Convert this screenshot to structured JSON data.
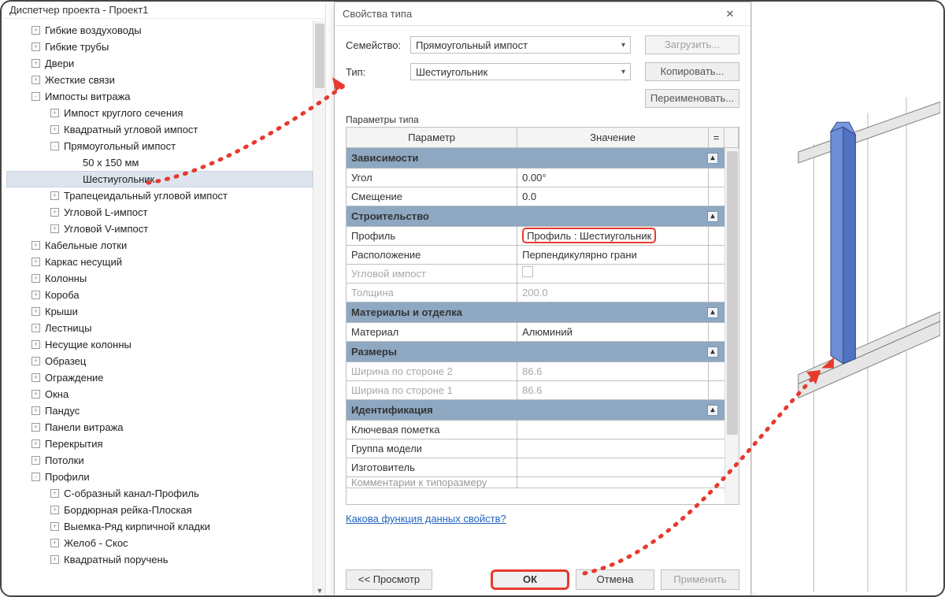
{
  "colors": {
    "panel_bg": "#ffffff",
    "border": "#c0c0c0",
    "section_bg": "#8ea8c2",
    "highlight": "#e63a2e",
    "dotted_path": "#e63a2e",
    "scrollbar_track": "#f4f4f4",
    "scrollbar_thumb": "#cfcfcf",
    "link": "#2164c0",
    "disabled_text": "#a8a8a8",
    "extrusion_fill": "#5f7dcc",
    "extrusion_stroke": "#344a8a",
    "glass_stroke": "#9a9a9a"
  },
  "tree": {
    "title": "Диспетчер проекта - Проект1",
    "nodes": [
      {
        "depth": 1,
        "exp": "+",
        "label": "Гибкие воздуховоды"
      },
      {
        "depth": 1,
        "exp": "+",
        "label": "Гибкие трубы"
      },
      {
        "depth": 1,
        "exp": "+",
        "label": "Двери"
      },
      {
        "depth": 1,
        "exp": "+",
        "label": "Жесткие связи"
      },
      {
        "depth": 1,
        "exp": "-",
        "label": "Импосты витража"
      },
      {
        "depth": 2,
        "exp": "+",
        "label": "Импост круглого сечения"
      },
      {
        "depth": 2,
        "exp": "+",
        "label": "Квадратный угловой импост"
      },
      {
        "depth": 2,
        "exp": "-",
        "label": "Прямоугольный импост"
      },
      {
        "depth": 3,
        "exp": " ",
        "label": "50 x 150 мм"
      },
      {
        "depth": 3,
        "exp": " ",
        "label": "Шестиугольник",
        "selected": true
      },
      {
        "depth": 2,
        "exp": "+",
        "label": "Трапецеидальный угловой импост"
      },
      {
        "depth": 2,
        "exp": "+",
        "label": "Угловой L-импост"
      },
      {
        "depth": 2,
        "exp": "+",
        "label": "Угловой V-импост"
      },
      {
        "depth": 1,
        "exp": "+",
        "label": "Кабельные лотки"
      },
      {
        "depth": 1,
        "exp": "+",
        "label": "Каркас несущий"
      },
      {
        "depth": 1,
        "exp": "+",
        "label": "Колонны"
      },
      {
        "depth": 1,
        "exp": "+",
        "label": "Короба"
      },
      {
        "depth": 1,
        "exp": "+",
        "label": "Крыши"
      },
      {
        "depth": 1,
        "exp": "+",
        "label": "Лестницы"
      },
      {
        "depth": 1,
        "exp": "+",
        "label": "Несущие колонны"
      },
      {
        "depth": 1,
        "exp": "+",
        "label": "Образец"
      },
      {
        "depth": 1,
        "exp": "+",
        "label": "Ограждение"
      },
      {
        "depth": 1,
        "exp": "+",
        "label": "Окна"
      },
      {
        "depth": 1,
        "exp": "+",
        "label": "Пандус"
      },
      {
        "depth": 1,
        "exp": "+",
        "label": "Панели витража"
      },
      {
        "depth": 1,
        "exp": "+",
        "label": "Перекрытия"
      },
      {
        "depth": 1,
        "exp": "+",
        "label": "Потолки"
      },
      {
        "depth": 1,
        "exp": "-",
        "label": "Профили"
      },
      {
        "depth": 2,
        "exp": "+",
        "label": "C-образный канал-Профиль"
      },
      {
        "depth": 2,
        "exp": "+",
        "label": "Бордюрная рейка-Плоская"
      },
      {
        "depth": 2,
        "exp": "+",
        "label": "Выемка-Ряд кирпичной кладки"
      },
      {
        "depth": 2,
        "exp": "+",
        "label": "Желоб - Скос"
      },
      {
        "depth": 2,
        "exp": "+",
        "label": "Квадратный поручень"
      }
    ]
  },
  "dialog": {
    "title": "Свойства типа",
    "family_label": "Семейство:",
    "family_value": "Прямоугольный импост",
    "type_label": "Тип:",
    "type_value": "Шестиугольник",
    "btn_load": "Загрузить...",
    "btn_copy": "Копировать...",
    "btn_rename": "Переименовать...",
    "params_label": "Параметры типа",
    "head_param": "Параметр",
    "head_value": "Значение",
    "head_eq": "=",
    "sections": [
      {
        "title": "Зависимости",
        "rows": [
          {
            "p": "Угол",
            "v": "0.00°"
          },
          {
            "p": "Смещение",
            "v": "0.0"
          }
        ]
      },
      {
        "title": "Строительство",
        "rows": [
          {
            "p": "Профиль",
            "v": "Профиль : Шестиугольник",
            "hl": true
          },
          {
            "p": "Расположение",
            "v": "Перпендикулярно грани"
          },
          {
            "p": "Угловой импост",
            "v": "",
            "disabled": true,
            "check": true
          },
          {
            "p": "Толщина",
            "v": "200.0",
            "disabled": true
          }
        ]
      },
      {
        "title": "Материалы и отделка",
        "rows": [
          {
            "p": "Материал",
            "v": "Алюминий"
          }
        ]
      },
      {
        "title": "Размеры",
        "rows": [
          {
            "p": "Ширина по стороне 2",
            "v": "86.6",
            "disabled": true
          },
          {
            "p": "Ширина по стороне 1",
            "v": "86.6",
            "disabled": true
          }
        ]
      },
      {
        "title": "Идентификация",
        "rows": [
          {
            "p": "Ключевая пометка",
            "v": ""
          },
          {
            "p": "Группа модели",
            "v": ""
          },
          {
            "p": "Изготовитель",
            "v": ""
          }
        ]
      }
    ],
    "truncated_row": "Комментарии к типоразмеру",
    "help_link": "Какова функция данных свойств?",
    "btn_preview": "<< Просмотр",
    "btn_ok": "ОК",
    "btn_cancel": "Отмена",
    "btn_apply": "Применить"
  },
  "annotation": {
    "arrow1": {
      "color": "#e63a2e",
      "dotted": true
    },
    "arrow2": {
      "color": "#e63a2e",
      "dotted": true
    }
  }
}
